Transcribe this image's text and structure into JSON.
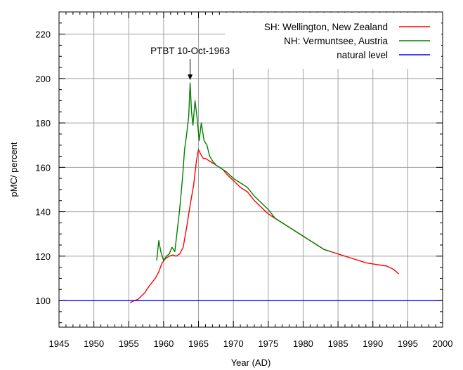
{
  "chart_data": {
    "type": "line",
    "xlabel": "Year (AD)",
    "ylabel": "pMC/ percent",
    "xlim": [
      1945,
      2000
    ],
    "ylim": [
      88,
      230
    ],
    "xticks": [
      1945,
      1950,
      1955,
      1960,
      1965,
      1970,
      1975,
      1980,
      1985,
      1990,
      1995,
      2000
    ],
    "yticks": [
      100,
      120,
      140,
      160,
      180,
      200,
      220
    ],
    "grid": true,
    "legend_position": "top-right",
    "annotation": {
      "text": "PTBT 10-Oct-1963",
      "x": 1963.8,
      "y": 199
    },
    "series": [
      {
        "name": "SH: Wellington, New Zealand",
        "color": "#ff0000",
        "x": [
          1955.2,
          1955.8,
          1956.3,
          1956.8,
          1957.3,
          1957.8,
          1958.3,
          1958.8,
          1959.3,
          1959.8,
          1960.3,
          1960.8,
          1961.3,
          1961.8,
          1962.3,
          1962.8,
          1963.3,
          1963.8,
          1964.3,
          1964.7,
          1965.0,
          1965.3,
          1965.7,
          1966.0,
          1966.5,
          1967.0,
          1967.5,
          1968.0,
          1968.5,
          1969.0,
          1970.0,
          1971.0,
          1972.0,
          1973.0,
          1974.0,
          1975.0,
          1976.0,
          1977.0,
          1978.0,
          1979.0,
          1980.0,
          1981.0,
          1982.0,
          1983.0,
          1984.0,
          1985.0,
          1986.0,
          1987.0,
          1988.0,
          1989.0,
          1990.0,
          1991.0,
          1992.0,
          1993.0,
          1993.7
        ],
        "y": [
          99,
          100,
          100.5,
          102,
          103.5,
          106,
          108,
          110,
          113,
          117,
          119,
          120,
          120.5,
          120,
          121,
          124,
          133,
          143,
          152,
          163,
          168,
          166,
          164,
          164,
          163,
          162,
          161,
          160,
          159,
          157,
          154,
          151,
          149,
          145,
          142,
          139,
          137,
          135,
          133,
          131,
          129,
          127,
          125,
          123,
          122,
          121,
          120,
          119,
          118,
          117,
          116.5,
          116,
          115.5,
          114,
          112
        ]
      },
      {
        "name": "NH: Vermuntsee, Austria",
        "color": "#008000",
        "x": [
          1959.0,
          1959.3,
          1959.6,
          1960.0,
          1960.4,
          1960.8,
          1961.2,
          1961.6,
          1962.0,
          1962.3,
          1962.7,
          1963.0,
          1963.3,
          1963.6,
          1963.8,
          1964.0,
          1964.2,
          1964.5,
          1964.8,
          1965.1,
          1965.4,
          1965.8,
          1966.2,
          1966.6,
          1967.0,
          1967.5,
          1968.0,
          1968.5,
          1969.0,
          1970.0,
          1971.0,
          1972.0,
          1973.0,
          1974.0,
          1975.0,
          1976.0,
          1977.0,
          1978.0,
          1979.0,
          1980.0,
          1981.0,
          1982.0,
          1983.0,
          1984.0
        ],
        "y": [
          118,
          127,
          122,
          118,
          120,
          121,
          124,
          122,
          133,
          141,
          155,
          168,
          175,
          183,
          198,
          185,
          179,
          190,
          182,
          172,
          180,
          172,
          170,
          165,
          163,
          161,
          160,
          159,
          158,
          155,
          153,
          151,
          147,
          144,
          141,
          137,
          135,
          133,
          131,
          129,
          127,
          125,
          123,
          122
        ]
      },
      {
        "name": "natural level",
        "color": "#0000ff",
        "x": [
          1945,
          2000
        ],
        "y": [
          100,
          100
        ]
      }
    ]
  }
}
